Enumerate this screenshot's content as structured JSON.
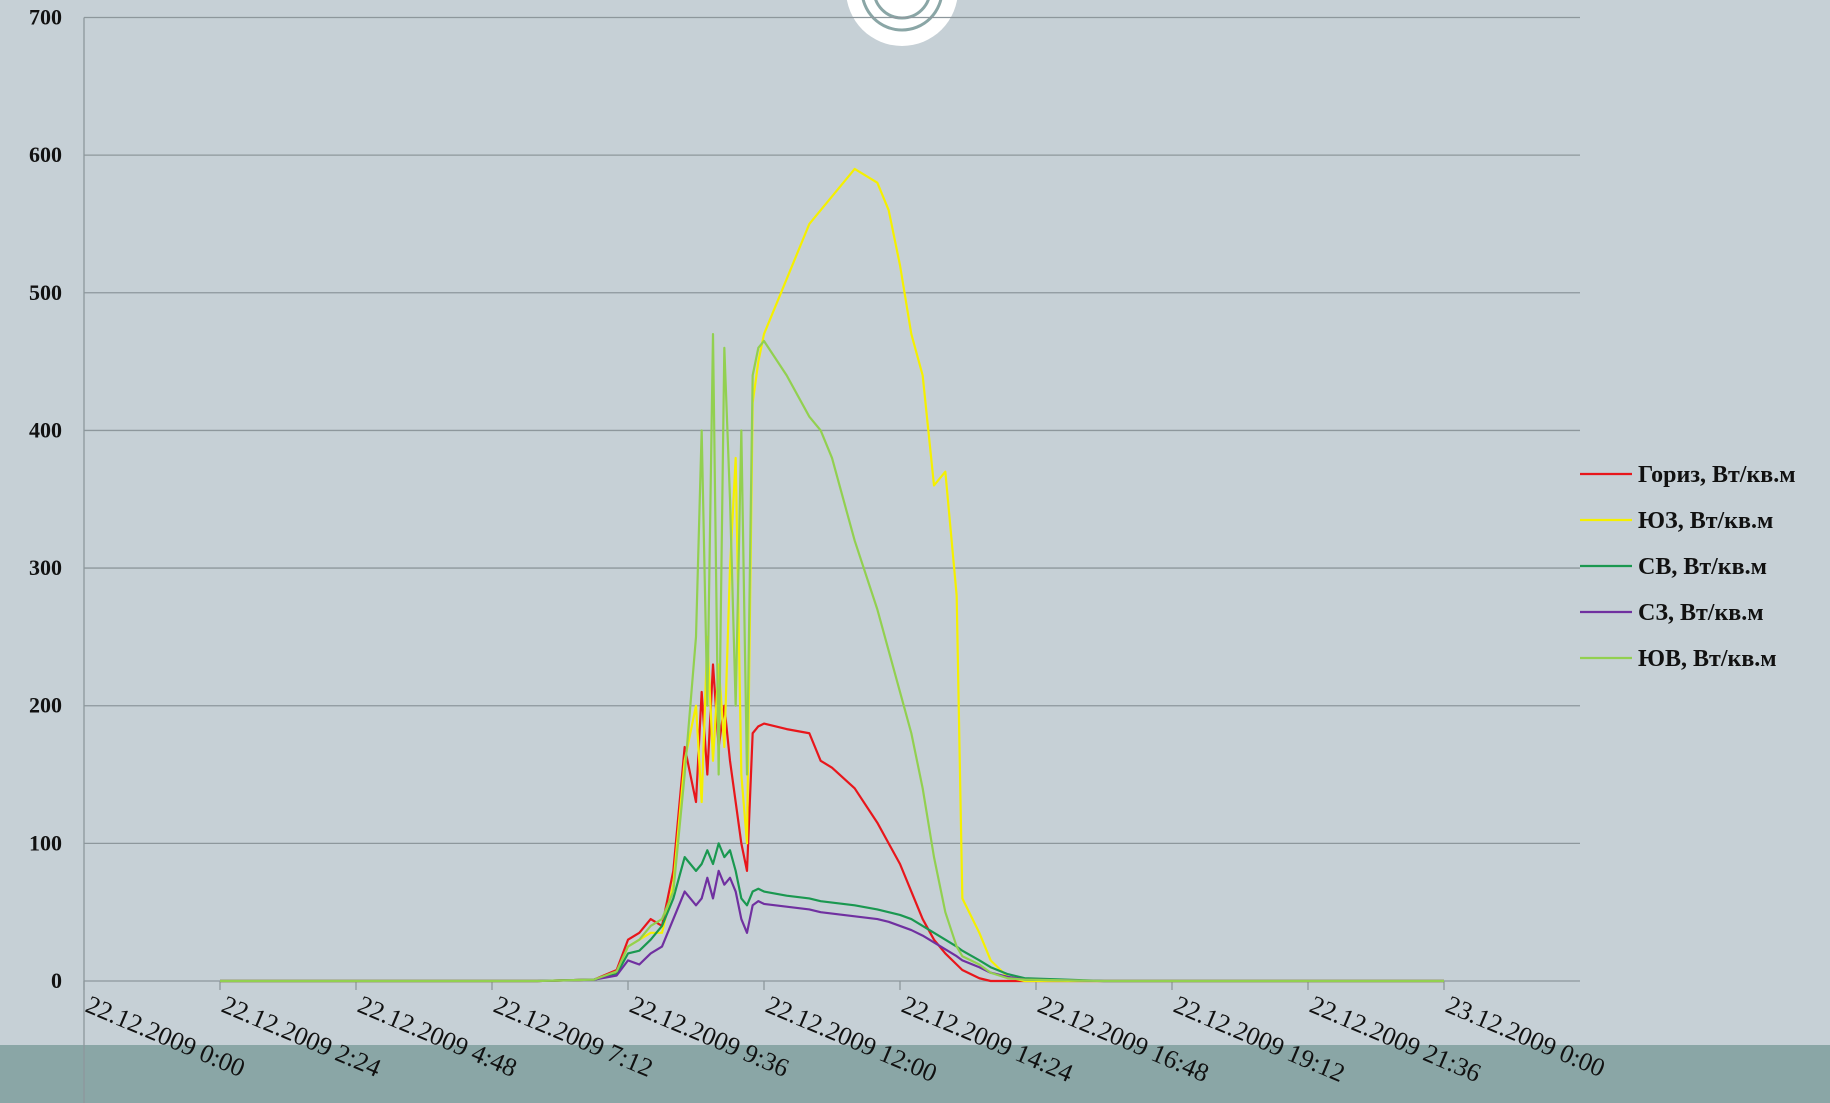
{
  "chart_data": {
    "type": "line",
    "x": [
      2.4,
      8.0,
      9.0,
      9.4,
      9.6,
      9.8,
      10.0,
      10.2,
      10.4,
      10.6,
      10.8,
      10.9,
      11.0,
      11.1,
      11.2,
      11.3,
      11.4,
      11.5,
      11.6,
      11.7,
      11.8,
      11.9,
      12.0,
      12.4,
      12.8,
      13.0,
      13.2,
      13.6,
      14.0,
      14.2,
      14.4,
      14.6,
      14.8,
      15.0,
      15.2,
      15.4,
      15.5,
      15.8,
      16.0,
      16.3,
      16.6,
      18.0,
      24.0
    ],
    "series": [
      {
        "name": "Гориз, Вт/кв.м",
        "color": "#e8161b",
        "values": [
          0,
          0,
          1,
          8,
          30,
          35,
          45,
          40,
          80,
          170,
          130,
          210,
          150,
          230,
          170,
          200,
          160,
          130,
          100,
          80,
          180,
          185,
          187,
          183,
          180,
          160,
          155,
          140,
          115,
          100,
          85,
          65,
          45,
          30,
          20,
          12,
          8,
          2,
          0,
          0,
          0,
          0,
          0
        ]
      },
      {
        "name": "ЮЗ, Вт/кв.м",
        "color": "#f5f000",
        "values": [
          0,
          0,
          1,
          6,
          25,
          30,
          35,
          35,
          70,
          160,
          200,
          130,
          250,
          160,
          230,
          170,
          300,
          380,
          150,
          100,
          420,
          450,
          470,
          510,
          550,
          560,
          570,
          590,
          580,
          560,
          520,
          470,
          440,
          360,
          370,
          280,
          60,
          35,
          15,
          3,
          0,
          0,
          0
        ]
      },
      {
        "name": "СВ, Вт/кв.м",
        "color": "#1a9850",
        "values": [
          0,
          0,
          1,
          5,
          20,
          22,
          30,
          40,
          60,
          90,
          80,
          85,
          95,
          85,
          100,
          90,
          95,
          80,
          60,
          55,
          65,
          67,
          65,
          62,
          60,
          58,
          57,
          55,
          52,
          50,
          48,
          45,
          40,
          35,
          30,
          25,
          22,
          15,
          10,
          5,
          2,
          0,
          0
        ]
      },
      {
        "name": "СЗ, Вт/кв.м",
        "color": "#7030a0",
        "values": [
          0,
          0,
          1,
          4,
          15,
          12,
          20,
          25,
          45,
          65,
          55,
          60,
          75,
          60,
          80,
          70,
          75,
          65,
          45,
          35,
          55,
          58,
          56,
          54,
          52,
          50,
          49,
          47,
          45,
          43,
          40,
          37,
          33,
          28,
          23,
          18,
          15,
          10,
          6,
          3,
          1,
          0,
          0
        ]
      },
      {
        "name": "ЮВ, Вт/кв.м",
        "color": "#92d050",
        "values": [
          0,
          0,
          1,
          7,
          25,
          30,
          40,
          45,
          65,
          150,
          250,
          400,
          200,
          470,
          150,
          460,
          350,
          200,
          400,
          150,
          440,
          460,
          465,
          440,
          410,
          400,
          380,
          320,
          270,
          240,
          210,
          180,
          140,
          90,
          50,
          25,
          18,
          12,
          6,
          2,
          1,
          0,
          0
        ]
      }
    ],
    "xlim": [
      0,
      26.4
    ],
    "xticks": [
      {
        "value": 0,
        "label": "22.12.2009 0:00"
      },
      {
        "value": 2.4,
        "label": "22.12.2009 2:24"
      },
      {
        "value": 4.8,
        "label": "22.12.2009 4:48"
      },
      {
        "value": 7.2,
        "label": "22.12.2009 7:12"
      },
      {
        "value": 9.6,
        "label": "22.12.2009 9:36"
      },
      {
        "value": 12,
        "label": "22.12.2009 12:00"
      },
      {
        "value": 14.4,
        "label": "22.12.2009 14:24"
      },
      {
        "value": 16.8,
        "label": "22.12.2009 16:48"
      },
      {
        "value": 19.2,
        "label": "22.12.2009 19:12"
      },
      {
        "value": 21.6,
        "label": "22.12.2009 21:36"
      },
      {
        "value": 24,
        "label": "23.12.2009 0:00"
      }
    ],
    "ylim": [
      0,
      700
    ],
    "yticks": [
      0,
      100,
      200,
      300,
      400,
      500,
      600,
      700
    ],
    "grid": true,
    "legend": "right"
  }
}
